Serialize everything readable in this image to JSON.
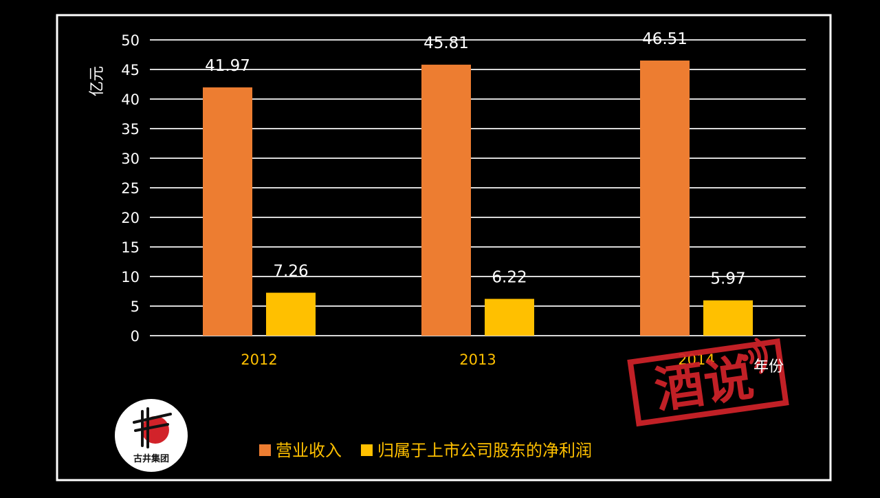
{
  "chart_data": {
    "type": "bar",
    "categories": [
      "2012",
      "2013",
      "2014"
    ],
    "series": [
      {
        "name": "营业收入",
        "values": [
          41.97,
          45.81,
          46.51
        ],
        "labels": [
          "41.97",
          "45.81",
          "46.51"
        ],
        "color": "#ED7D31"
      },
      {
        "name": "归属于上市公司股东的净利润",
        "values": [
          7.26,
          6.22,
          5.97
        ],
        "labels": [
          "7.26",
          "6.22",
          "5.97"
        ],
        "color": "#FFC000"
      }
    ],
    "ylabel": "亿元",
    "xlabel": "年份",
    "ylim": [
      0,
      50
    ],
    "yticks": [
      0,
      5,
      10,
      15,
      20,
      25,
      30,
      35,
      40,
      45,
      50
    ],
    "grid": true,
    "legend": "bottom",
    "colors": {
      "background": "#000000",
      "frame": "#FFFFFF",
      "gridline": "#D9D9D9",
      "axis_text": "#FFFFFF",
      "category_text": "#FFC000",
      "legend_text": "#FFC000",
      "stamp": "#D2232A"
    }
  },
  "watermark": {
    "text": "酒说",
    "icon": "signal-waves-icon"
  },
  "logo": {
    "text": "古井集团",
    "icon": "gujing-logo-icon"
  }
}
